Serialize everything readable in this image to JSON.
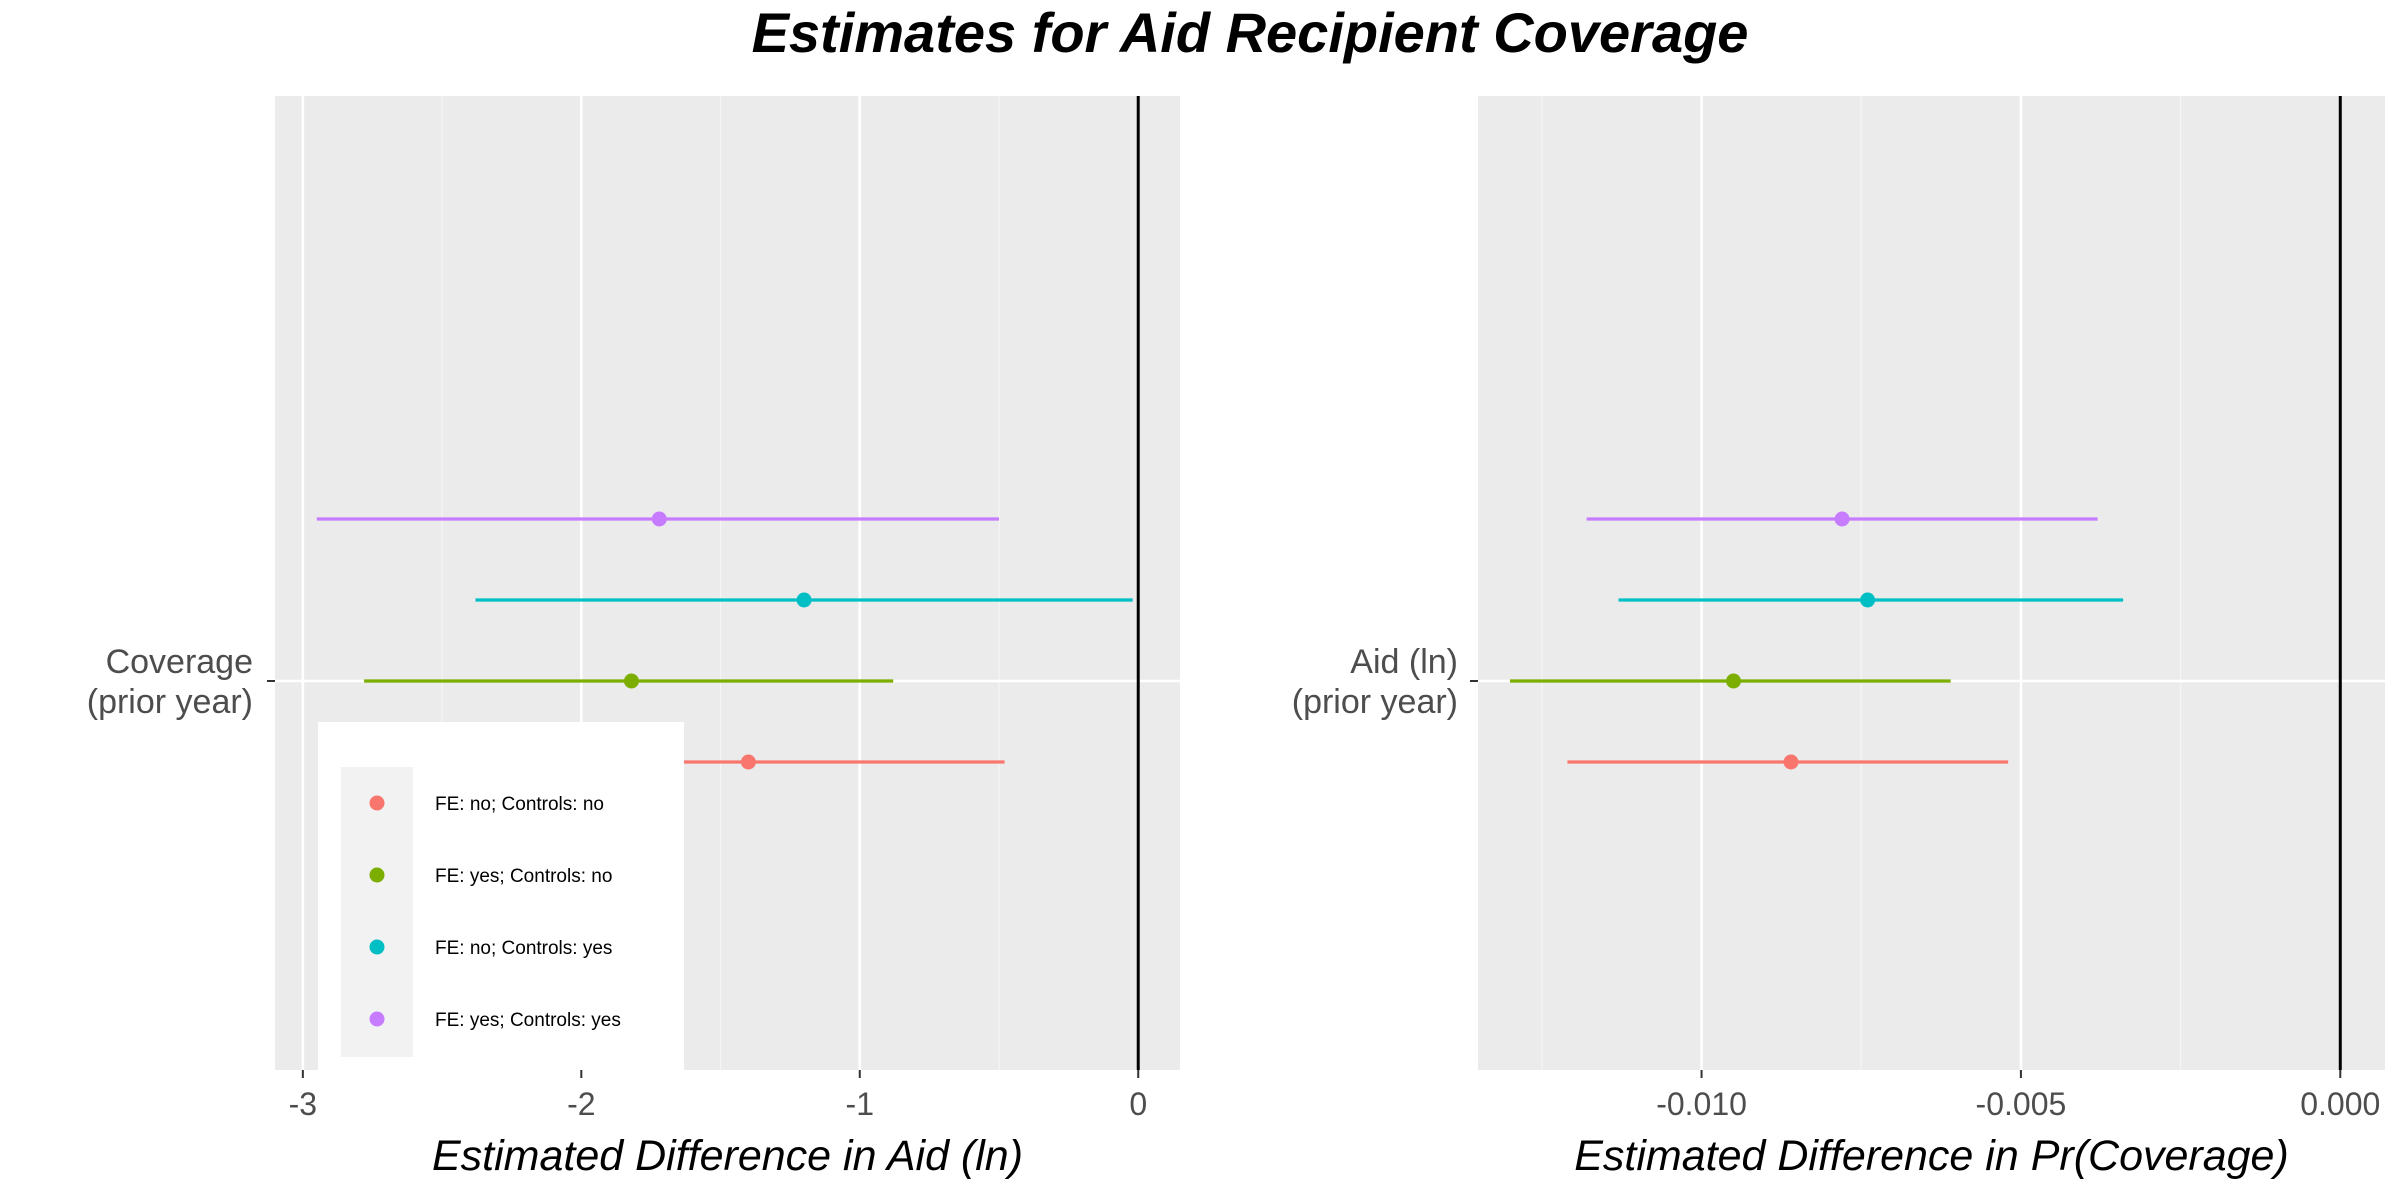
{
  "title": "Estimates for Aid Recipient Coverage",
  "legend": {
    "position": "bottom-left (inside left panel)",
    "entries": [
      {
        "label": "FE: no; Controls: no",
        "color": "#F8766D"
      },
      {
        "label": "FE: yes; Controls: no",
        "color": "#7CAE00"
      },
      {
        "label": "FE: no; Controls: yes",
        "color": "#00BFC4"
      },
      {
        "label": "FE: yes; Controls: yes",
        "color": "#C77CFF"
      }
    ]
  },
  "chart_data": [
    {
      "type": "scatter",
      "subtype": "coefficient-plot",
      "category": [
        "Coverage",
        "(prior year)"
      ],
      "xlabel": "Estimated Difference in Aid (ln)",
      "ylabel": "",
      "xlim": [
        -3.1,
        0.15
      ],
      "xticks": [
        -3,
        -2,
        -1,
        0
      ],
      "xtick_labels": [
        "-3",
        "-2",
        "-1",
        "0"
      ],
      "reference_line": 0,
      "grid": true,
      "series": [
        {
          "name": "FE: no; Controls: no",
          "color": "#F8766D",
          "estimate": -1.4,
          "ci_low": -2.35,
          "ci_high": -0.48
        },
        {
          "name": "FE: yes; Controls: no",
          "color": "#7CAE00",
          "estimate": -1.82,
          "ci_low": -2.78,
          "ci_high": -0.88
        },
        {
          "name": "FE: no; Controls: yes",
          "color": "#00BFC4",
          "estimate": -1.2,
          "ci_low": -2.38,
          "ci_high": -0.02
        },
        {
          "name": "FE: yes; Controls: yes",
          "color": "#C77CFF",
          "estimate": -1.72,
          "ci_low": -2.95,
          "ci_high": -0.5
        }
      ]
    },
    {
      "type": "scatter",
      "subtype": "coefficient-plot",
      "category": [
        "Aid (ln)",
        "(prior year)"
      ],
      "xlabel": "Estimated Difference in Pr(Coverage)",
      "ylabel": "",
      "xlim": [
        -0.0135,
        0.0007
      ],
      "xticks": [
        -0.01,
        -0.005,
        0
      ],
      "xtick_labels": [
        "-0.010",
        "-0.005",
        "0.000"
      ],
      "reference_line": 0,
      "grid": true,
      "series": [
        {
          "name": "FE: no; Controls: no",
          "color": "#F8766D",
          "estimate": -0.0086,
          "ci_low": -0.0121,
          "ci_high": -0.0052
        },
        {
          "name": "FE: yes; Controls: no",
          "color": "#7CAE00",
          "estimate": -0.0095,
          "ci_low": -0.013,
          "ci_high": -0.0061
        },
        {
          "name": "FE: no; Controls: yes",
          "color": "#00BFC4",
          "estimate": -0.0074,
          "ci_low": -0.0113,
          "ci_high": -0.0034
        },
        {
          "name": "FE: yes; Controls: yes",
          "color": "#C77CFF",
          "estimate": -0.0078,
          "ci_low": -0.0118,
          "ci_high": -0.0038
        }
      ]
    }
  ]
}
